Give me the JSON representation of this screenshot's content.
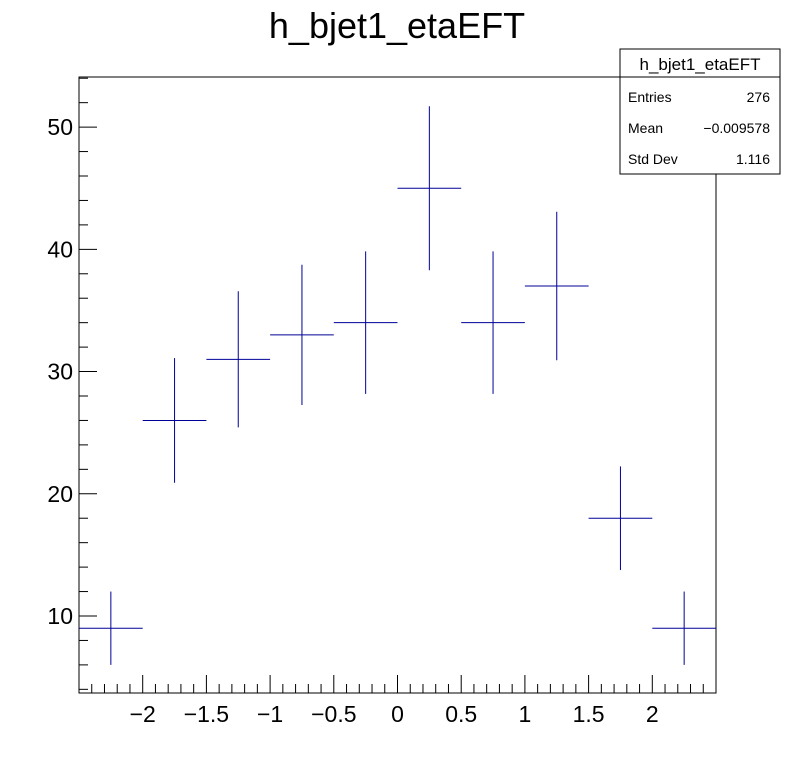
{
  "chart_data": {
    "type": "scatter",
    "title": "h_bjet1_etaEFT",
    "xlabel": "",
    "ylabel": "",
    "xlim": [
      -2.5,
      2.5
    ],
    "ylim": [
      3.7,
      54.1
    ],
    "grid": false,
    "legend_placement": "top-right",
    "x_ticks": [
      {
        "value": -2,
        "label": "−2"
      },
      {
        "value": -1.5,
        "label": "−1.5"
      },
      {
        "value": -1,
        "label": "−1"
      },
      {
        "value": -0.5,
        "label": "−0.5"
      },
      {
        "value": 0,
        "label": "0"
      },
      {
        "value": 0.5,
        "label": "0.5"
      },
      {
        "value": 1,
        "label": "1"
      },
      {
        "value": 1.5,
        "label": "1.5"
      },
      {
        "value": 2,
        "label": "2"
      }
    ],
    "y_ticks": [
      {
        "value": 10,
        "label": "10"
      },
      {
        "value": 20,
        "label": "20"
      },
      {
        "value": 30,
        "label": "30"
      },
      {
        "value": 40,
        "label": "40"
      },
      {
        "value": 50,
        "label": "50"
      }
    ],
    "bin_width": 0.5,
    "x": [
      -2.25,
      -1.75,
      -1.25,
      -0.75,
      -0.25,
      0.25,
      0.75,
      1.25,
      1.75,
      2.25
    ],
    "values": [
      9,
      26,
      31,
      33,
      34,
      45,
      34,
      37,
      18,
      9
    ],
    "errors": [
      3.0,
      5.1,
      5.57,
      5.74,
      5.83,
      6.71,
      5.83,
      6.08,
      4.24,
      3.0
    ],
    "series_color": "#000099",
    "stats_box": {
      "title": "h_bjet1_etaEFT",
      "rows": [
        {
          "label": "Entries",
          "value": "276"
        },
        {
          "label": "Mean",
          "value": "−0.009578"
        },
        {
          "label": "Std Dev",
          "value": "1.116"
        }
      ]
    }
  }
}
